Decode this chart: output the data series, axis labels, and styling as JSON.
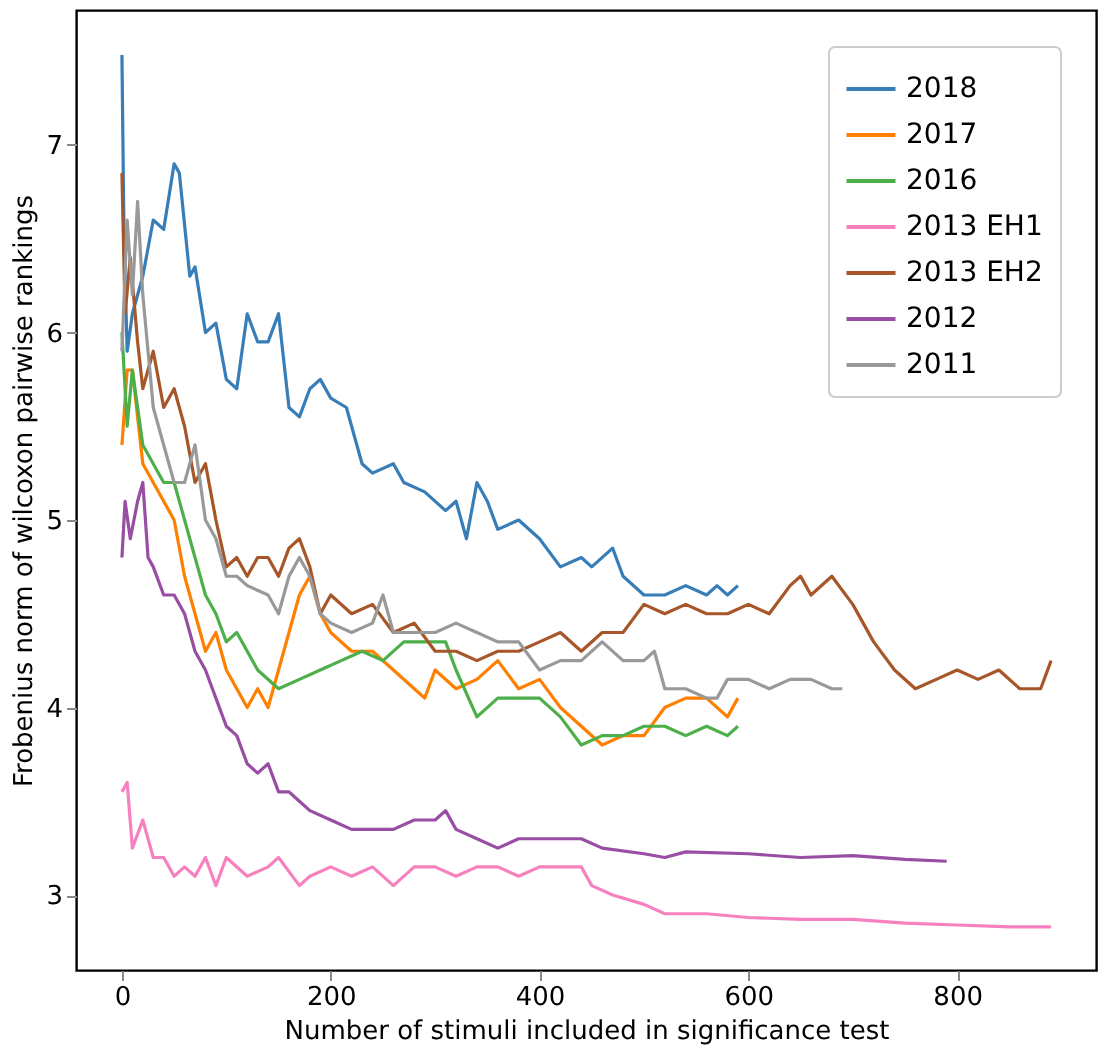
{
  "chart_data": {
    "type": "line",
    "xlabel": "Number of stimuli included in significance test",
    "ylabel": "Frobenius norm of wilcoxon pairwise rankings",
    "xlim": [
      -44,
      933
    ],
    "ylim": [
      2.6,
      7.72
    ],
    "xticks": [
      0,
      200,
      400,
      600,
      800
    ],
    "yticks": [
      3,
      4,
      5,
      6,
      7
    ],
    "grid": false,
    "legend": "top right",
    "line_style": "solid",
    "marker": "none",
    "series": [
      {
        "name": "2018",
        "color": "#377eb8",
        "x": [
          0,
          2,
          5,
          10,
          20,
          30,
          40,
          50,
          55,
          65,
          70,
          80,
          90,
          100,
          110,
          120,
          130,
          140,
          150,
          160,
          170,
          180,
          190,
          200,
          215,
          230,
          240,
          260,
          270,
          290,
          310,
          320,
          330,
          340,
          350,
          360,
          380,
          400,
          420,
          440,
          450,
          470,
          480,
          500,
          520,
          540,
          560,
          570,
          580,
          590
        ],
        "values": [
          7.48,
          6.5,
          5.9,
          6.1,
          6.3,
          6.6,
          6.55,
          6.9,
          6.85,
          6.3,
          6.35,
          6.0,
          6.05,
          5.75,
          5.7,
          6.1,
          5.95,
          5.95,
          6.1,
          5.6,
          5.55,
          5.7,
          5.75,
          5.65,
          5.6,
          5.3,
          5.25,
          5.3,
          5.2,
          5.15,
          5.05,
          5.1,
          4.9,
          5.2,
          5.1,
          4.95,
          5.0,
          4.9,
          4.75,
          4.8,
          4.75,
          4.85,
          4.7,
          4.6,
          4.6,
          4.65,
          4.6,
          4.65,
          4.6,
          4.65
        ]
      },
      {
        "name": "2017",
        "color": "#ff7f00",
        "x": [
          0,
          5,
          10,
          20,
          30,
          40,
          50,
          60,
          70,
          80,
          90,
          100,
          110,
          120,
          130,
          140,
          150,
          160,
          170,
          180,
          190,
          200,
          220,
          240,
          260,
          280,
          290,
          300,
          320,
          340,
          360,
          380,
          400,
          420,
          440,
          460,
          480,
          500,
          520,
          540,
          560,
          580,
          590
        ],
        "values": [
          5.4,
          5.8,
          5.8,
          5.3,
          5.2,
          5.1,
          5.0,
          4.7,
          4.5,
          4.3,
          4.4,
          4.2,
          4.1,
          4.0,
          4.1,
          4.0,
          4.2,
          4.4,
          4.6,
          4.7,
          4.5,
          4.4,
          4.3,
          4.3,
          4.2,
          4.1,
          4.05,
          4.2,
          4.1,
          4.15,
          4.25,
          4.1,
          4.15,
          4.0,
          3.9,
          3.8,
          3.85,
          3.85,
          4.0,
          4.05,
          4.05,
          3.95,
          4.05
        ]
      },
      {
        "name": "2016",
        "color": "#4daf4a",
        "x": [
          0,
          5,
          10,
          20,
          30,
          40,
          50,
          60,
          70,
          80,
          90,
          100,
          110,
          130,
          150,
          170,
          190,
          210,
          230,
          250,
          270,
          290,
          310,
          320,
          340,
          360,
          380,
          400,
          420,
          440,
          460,
          480,
          500,
          520,
          540,
          560,
          580,
          590
        ],
        "values": [
          6.0,
          5.5,
          5.8,
          5.4,
          5.3,
          5.2,
          5.2,
          5.0,
          4.8,
          4.6,
          4.5,
          4.35,
          4.4,
          4.2,
          4.1,
          4.15,
          4.2,
          4.25,
          4.3,
          4.25,
          4.35,
          4.35,
          4.35,
          4.2,
          3.95,
          4.05,
          4.05,
          4.05,
          3.95,
          3.8,
          3.85,
          3.85,
          3.9,
          3.9,
          3.85,
          3.9,
          3.85,
          3.9
        ]
      },
      {
        "name": "2013 EH1",
        "color": "#f781bf",
        "x": [
          0,
          5,
          10,
          20,
          30,
          40,
          50,
          60,
          70,
          80,
          90,
          100,
          120,
          140,
          150,
          170,
          180,
          200,
          220,
          240,
          260,
          280,
          300,
          320,
          340,
          360,
          380,
          400,
          420,
          440,
          450,
          470,
          500,
          520,
          540,
          560,
          600,
          650,
          700,
          750,
          800,
          850,
          890
        ],
        "values": [
          3.55,
          3.6,
          3.25,
          3.4,
          3.2,
          3.2,
          3.1,
          3.15,
          3.1,
          3.2,
          3.05,
          3.2,
          3.1,
          3.15,
          3.2,
          3.05,
          3.1,
          3.15,
          3.1,
          3.15,
          3.05,
          3.15,
          3.15,
          3.1,
          3.15,
          3.15,
          3.1,
          3.15,
          3.15,
          3.15,
          3.05,
          3.0,
          2.95,
          2.9,
          2.9,
          2.9,
          2.88,
          2.87,
          2.87,
          2.85,
          2.84,
          2.83,
          2.83
        ]
      },
      {
        "name": "2013 EH2",
        "color": "#a65628",
        "x": [
          0,
          3,
          8,
          15,
          20,
          30,
          40,
          50,
          60,
          70,
          80,
          90,
          100,
          110,
          120,
          130,
          140,
          150,
          160,
          170,
          180,
          190,
          200,
          220,
          240,
          260,
          280,
          300,
          320,
          340,
          360,
          380,
          400,
          420,
          440,
          460,
          480,
          500,
          520,
          540,
          560,
          580,
          600,
          620,
          640,
          650,
          660,
          680,
          700,
          720,
          740,
          760,
          780,
          800,
          820,
          840,
          860,
          880,
          890
        ],
        "values": [
          6.85,
          6.1,
          6.4,
          5.95,
          5.7,
          5.9,
          5.6,
          5.7,
          5.5,
          5.2,
          5.3,
          5.0,
          4.75,
          4.8,
          4.7,
          4.8,
          4.8,
          4.7,
          4.85,
          4.9,
          4.75,
          4.5,
          4.6,
          4.5,
          4.55,
          4.4,
          4.45,
          4.3,
          4.3,
          4.25,
          4.3,
          4.3,
          4.35,
          4.4,
          4.3,
          4.4,
          4.4,
          4.55,
          4.5,
          4.55,
          4.5,
          4.5,
          4.55,
          4.5,
          4.65,
          4.7,
          4.6,
          4.7,
          4.55,
          4.35,
          4.2,
          4.1,
          4.15,
          4.2,
          4.15,
          4.2,
          4.1,
          4.1,
          4.25
        ]
      },
      {
        "name": "2012",
        "color": "#984ea3",
        "x": [
          0,
          3,
          8,
          15,
          20,
          25,
          30,
          40,
          50,
          60,
          70,
          80,
          90,
          100,
          110,
          120,
          130,
          140,
          150,
          160,
          170,
          180,
          200,
          220,
          240,
          260,
          280,
          300,
          310,
          320,
          340,
          360,
          380,
          400,
          420,
          440,
          460,
          500,
          520,
          540,
          600,
          650,
          700,
          750,
          790
        ],
        "values": [
          4.8,
          5.1,
          4.9,
          5.1,
          5.2,
          4.8,
          4.75,
          4.6,
          4.6,
          4.5,
          4.3,
          4.2,
          4.05,
          3.9,
          3.85,
          3.7,
          3.65,
          3.7,
          3.55,
          3.55,
          3.5,
          3.45,
          3.4,
          3.35,
          3.35,
          3.35,
          3.4,
          3.4,
          3.45,
          3.35,
          3.3,
          3.25,
          3.3,
          3.3,
          3.3,
          3.3,
          3.25,
          3.22,
          3.2,
          3.23,
          3.22,
          3.2,
          3.21,
          3.19,
          3.18
        ]
      },
      {
        "name": "2011",
        "color": "#999999",
        "x": [
          0,
          5,
          10,
          15,
          20,
          25,
          30,
          40,
          50,
          60,
          70,
          80,
          90,
          100,
          110,
          120,
          140,
          150,
          160,
          170,
          180,
          190,
          200,
          220,
          240,
          250,
          260,
          280,
          300,
          320,
          340,
          360,
          380,
          400,
          420,
          440,
          460,
          480,
          500,
          510,
          520,
          540,
          560,
          570,
          580,
          600,
          620,
          640,
          660,
          680,
          690
        ],
        "values": [
          5.9,
          6.6,
          6.2,
          6.7,
          6.2,
          5.9,
          5.6,
          5.4,
          5.2,
          5.2,
          5.4,
          5.0,
          4.9,
          4.7,
          4.7,
          4.65,
          4.6,
          4.5,
          4.7,
          4.8,
          4.7,
          4.5,
          4.45,
          4.4,
          4.45,
          4.6,
          4.4,
          4.4,
          4.4,
          4.45,
          4.4,
          4.35,
          4.35,
          4.2,
          4.25,
          4.25,
          4.35,
          4.25,
          4.25,
          4.3,
          4.1,
          4.1,
          4.05,
          4.05,
          4.15,
          4.15,
          4.1,
          4.15,
          4.15,
          4.1,
          4.1
        ]
      }
    ]
  }
}
